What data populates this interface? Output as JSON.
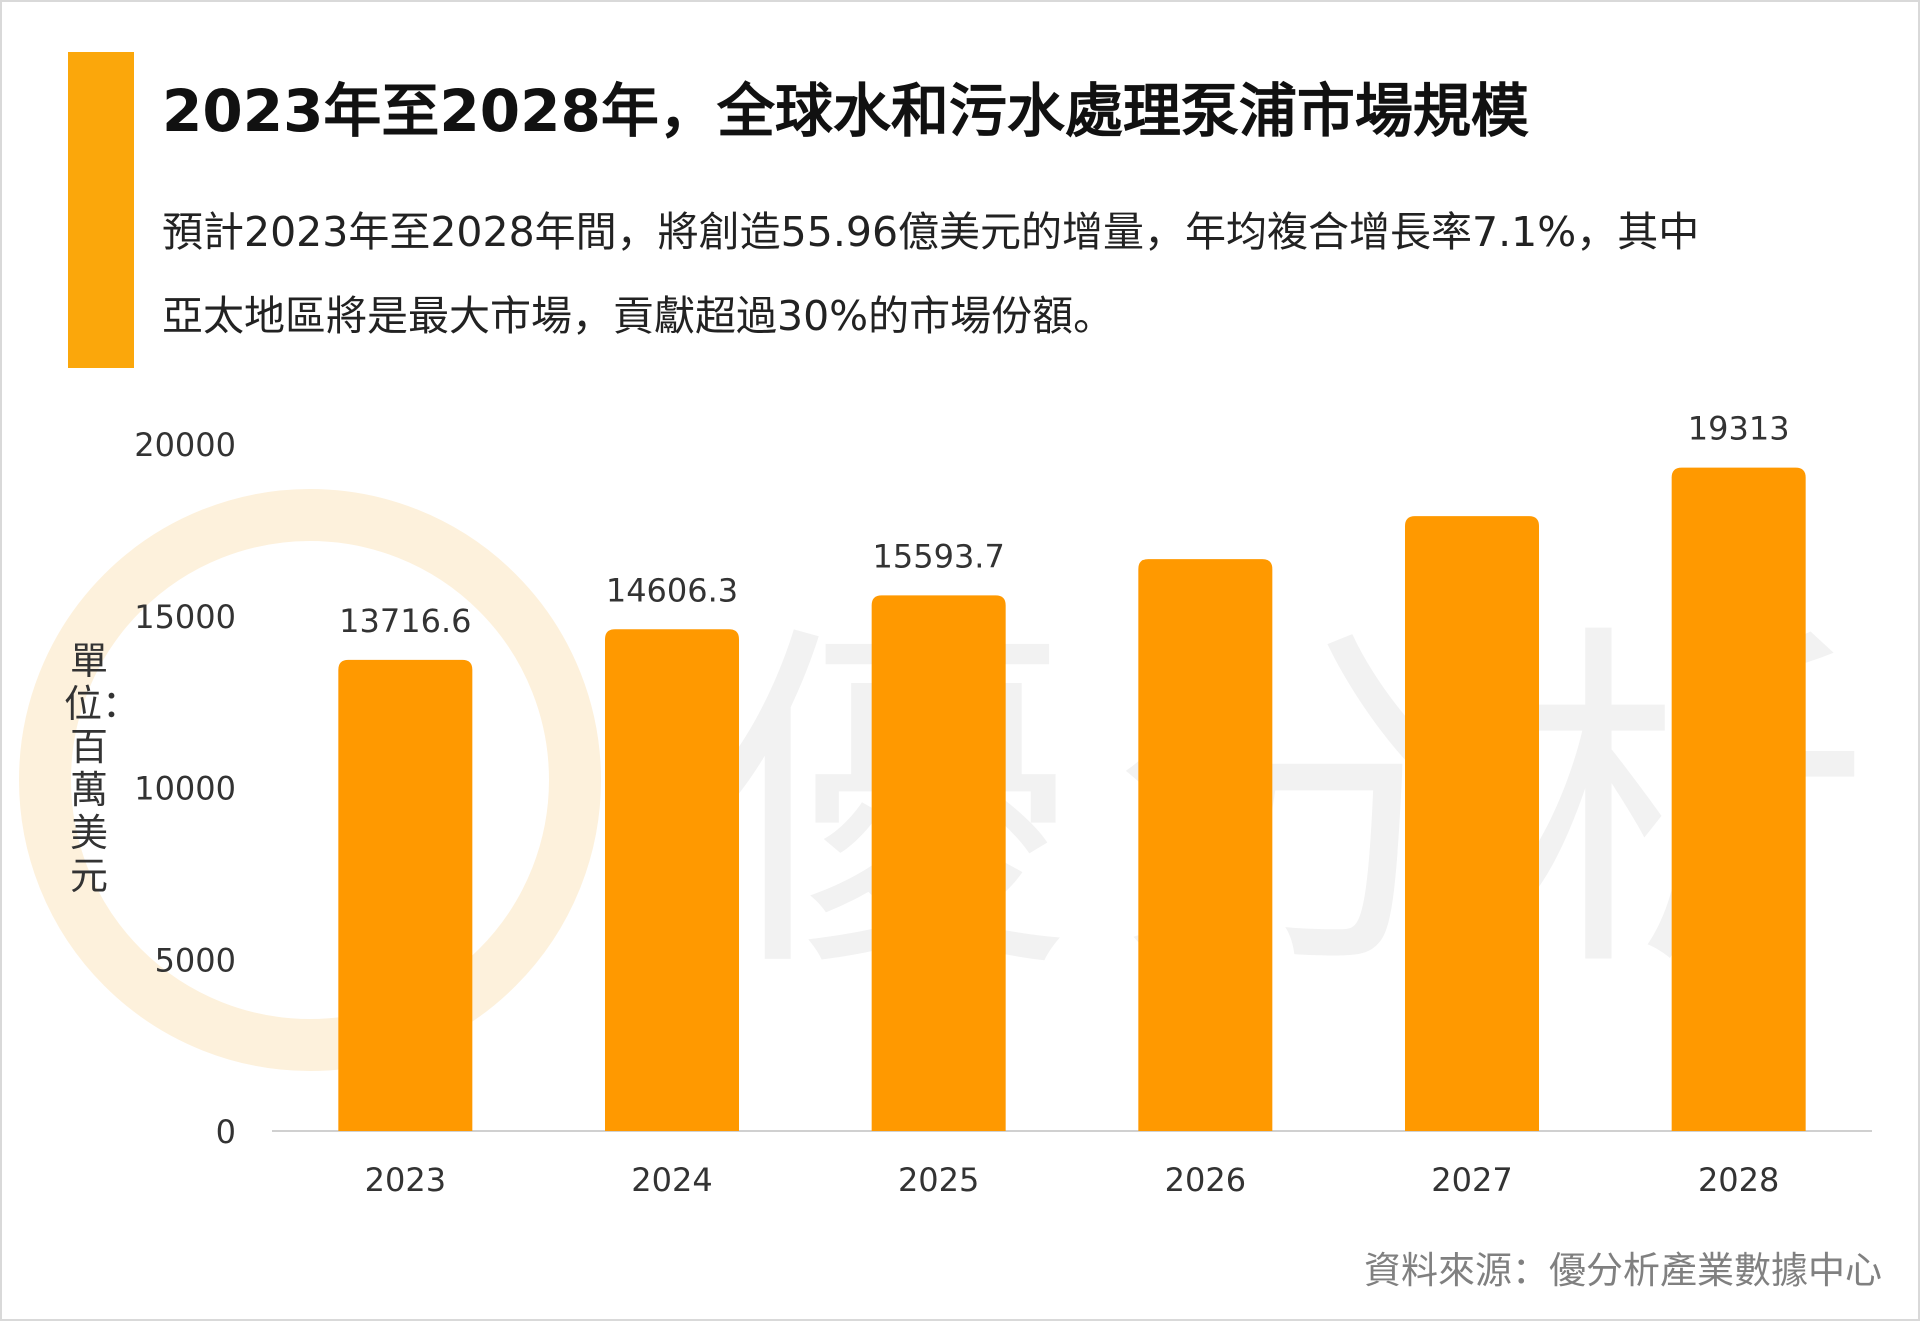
{
  "header": {
    "title": "2023年至2028年，全球水和污水處理泵浦市場規模",
    "description_lines": [
      "預計2023年至2028年間，將創造55.96億美元的增量，年均複合增長率7.1%，其中",
      "亞太地區將是最大市場，貢獻超過30%的市場份額。"
    ]
  },
  "source": "資料來源：優分析產業數據中心",
  "watermark": "優分析",
  "colors": {
    "accent": "#FBA70B",
    "bar": "#FF9900",
    "axis": "#d0d0d0",
    "watermark": "#f2f2f2",
    "watermark_ring": "#fdf1dc"
  },
  "chart_data": {
    "type": "bar",
    "categories": [
      "2023",
      "2024",
      "2025",
      "2026",
      "2027",
      "2028"
    ],
    "values": [
      13716.6,
      14606.3,
      15593.7,
      16650,
      17900,
      19313
    ],
    "data_labels": [
      "13716.6",
      "14606.3",
      "15593.7",
      "",
      "",
      "19313"
    ],
    "ylabel": "單位：百萬美元",
    "ylim": [
      0,
      20000
    ],
    "yticks": [
      "0",
      "5000",
      "10000",
      "15000",
      "20000"
    ],
    "grid": false,
    "legend": "none"
  }
}
